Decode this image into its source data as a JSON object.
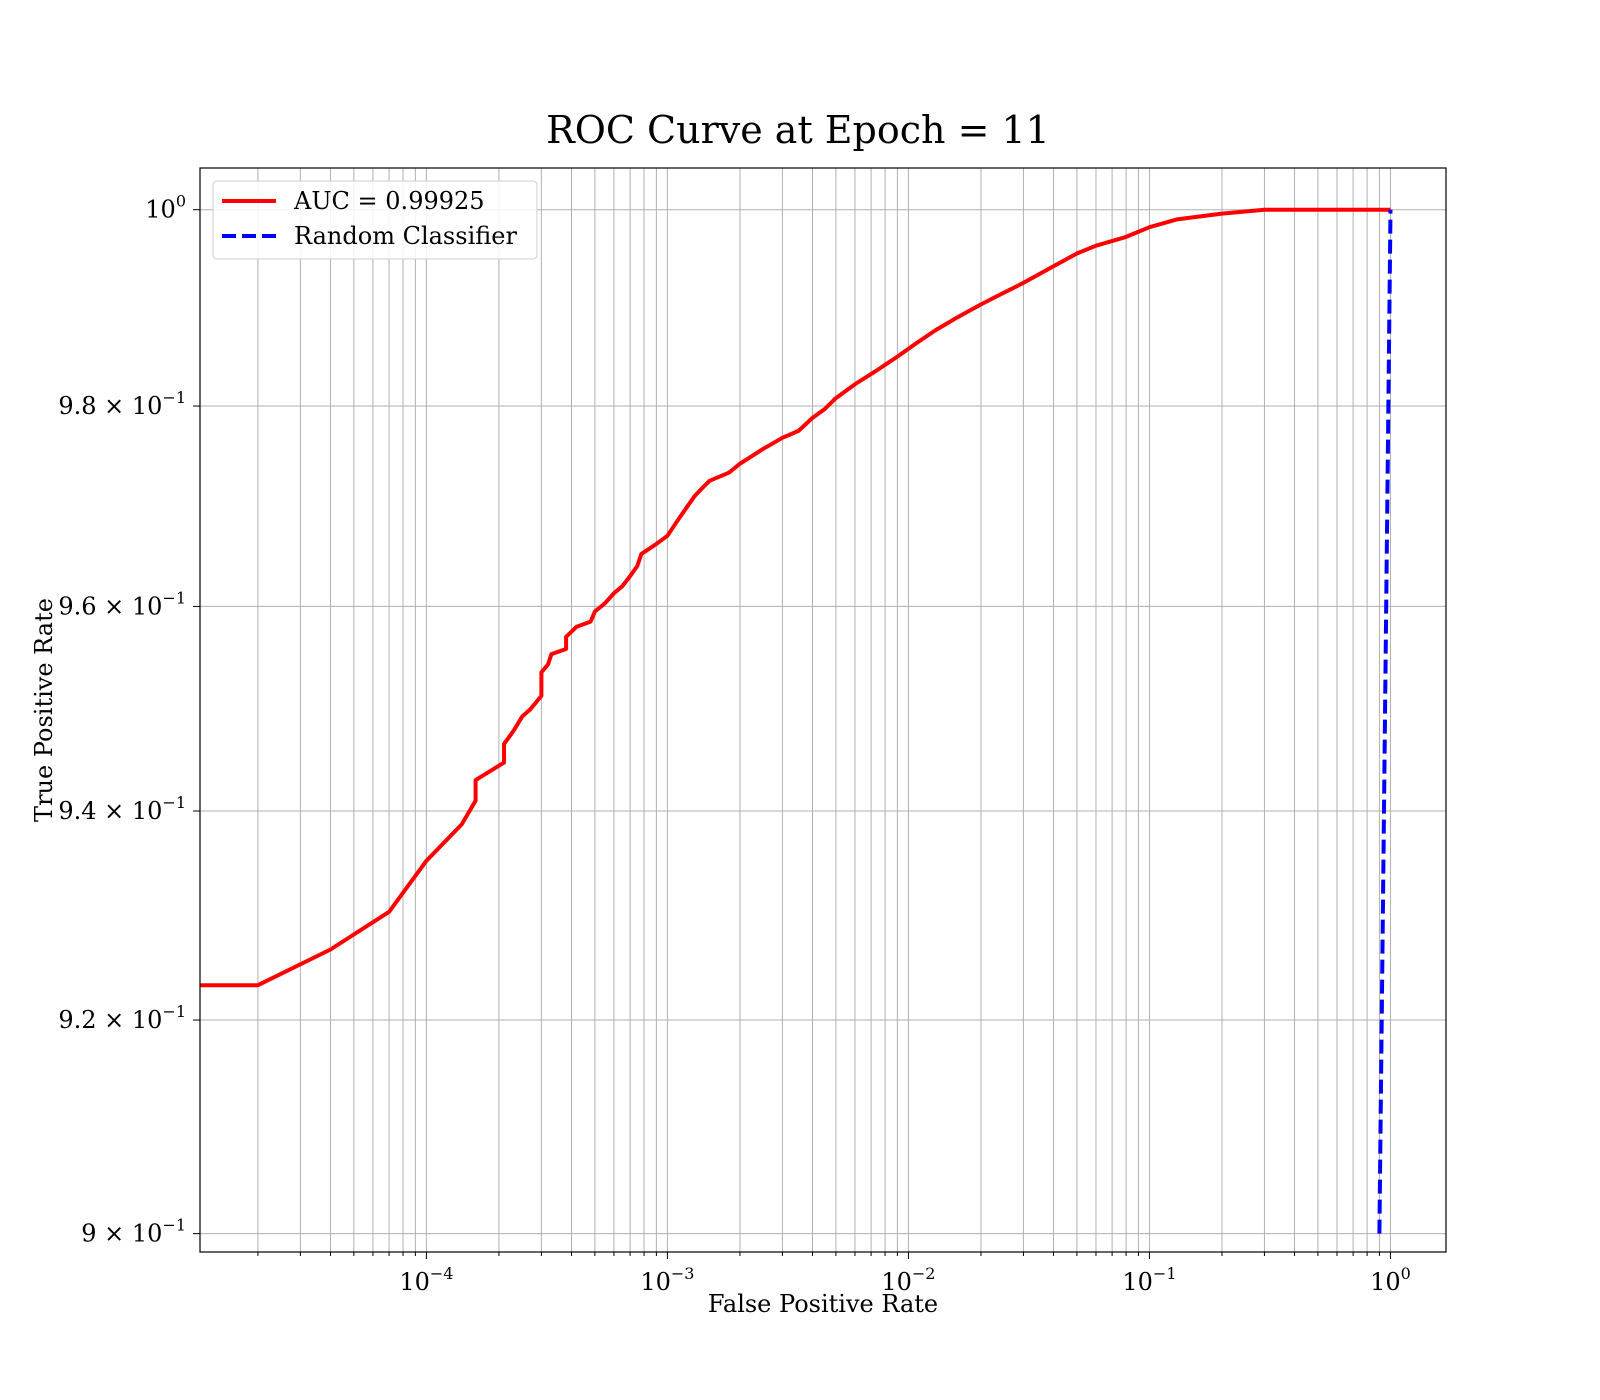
{
  "chart_data": {
    "type": "line",
    "title": "ROC Curve at Epoch = 11",
    "xlabel": "False Positive Rate",
    "ylabel": "True Positive Rate",
    "xscale": "log",
    "yscale": "log",
    "xlim": [
      1.15e-05,
      1.7
    ],
    "ylim": [
      0.8983,
      1.0043
    ],
    "grid": true,
    "legend_position": "top-left",
    "x_ticks": [
      {
        "value": 0.0001,
        "base": "10",
        "exp": "−4"
      },
      {
        "value": 0.001,
        "base": "10",
        "exp": "−3"
      },
      {
        "value": 0.01,
        "base": "10",
        "exp": "−2"
      },
      {
        "value": 0.1,
        "base": "10",
        "exp": "−1"
      },
      {
        "value": 1,
        "base": "10",
        "exp": "0"
      }
    ],
    "y_ticks": [
      {
        "value": 1.0,
        "base": "10",
        "exp": "0"
      },
      {
        "value": 0.98,
        "base": "9.8 × 10",
        "exp": "−1"
      },
      {
        "value": 0.96,
        "base": "9.6 × 10",
        "exp": "−1"
      },
      {
        "value": 0.94,
        "base": "9.4 × 10",
        "exp": "−1"
      },
      {
        "value": 0.92,
        "base": "9.2 × 10",
        "exp": "−1"
      },
      {
        "value": 0.9,
        "base": "9 × 10",
        "exp": "−1"
      }
    ],
    "series": [
      {
        "name": "AUC = 0.99925",
        "color": "#ff0000",
        "style": "solid",
        "x": [
          1.15e-05,
          2e-05,
          4e-05,
          7e-05,
          0.0001,
          0.00014,
          0.00016,
          0.00016,
          0.00021,
          0.00021,
          0.00023,
          0.00025,
          0.00027,
          0.0003,
          0.0003,
          0.00032,
          0.00033,
          0.00038,
          0.00038,
          0.00042,
          0.00048,
          0.0005,
          0.00055,
          0.0006,
          0.00065,
          0.0007,
          0.00075,
          0.00078,
          0.0009,
          0.001,
          0.0011,
          0.0012,
          0.0013,
          0.0014,
          0.0015,
          0.0018,
          0.002,
          0.0025,
          0.003,
          0.0035,
          0.004,
          0.0045,
          0.005,
          0.006,
          0.0075,
          0.009,
          0.011,
          0.013,
          0.016,
          0.02,
          0.024,
          0.03,
          0.04,
          0.05,
          0.06,
          0.08,
          0.1,
          0.13,
          0.2,
          0.3,
          0.5,
          1.0
        ],
        "y": [
          0.9233,
          0.9233,
          0.9267,
          0.9303,
          0.9352,
          0.9387,
          0.941,
          0.943,
          0.9447,
          0.9465,
          0.9478,
          0.9492,
          0.9499,
          0.9512,
          0.9535,
          0.9543,
          0.9553,
          0.9558,
          0.957,
          0.958,
          0.9585,
          0.9595,
          0.9603,
          0.9613,
          0.962,
          0.963,
          0.964,
          0.9652,
          0.9662,
          0.967,
          0.9685,
          0.9698,
          0.971,
          0.9718,
          0.9725,
          0.9733,
          0.9742,
          0.9757,
          0.9768,
          0.9775,
          0.9788,
          0.9797,
          0.9808,
          0.9822,
          0.9837,
          0.985,
          0.9865,
          0.9877,
          0.989,
          0.9903,
          0.9913,
          0.9925,
          0.9942,
          0.9955,
          0.9963,
          0.9972,
          0.9982,
          0.999,
          0.9996,
          1.0,
          1.0,
          1.0
        ]
      },
      {
        "name": "Random Classifier",
        "color": "#0000ff",
        "style": "dashed",
        "x": [
          0.9,
          1.0
        ],
        "y": [
          0.9,
          1.0
        ]
      }
    ]
  }
}
